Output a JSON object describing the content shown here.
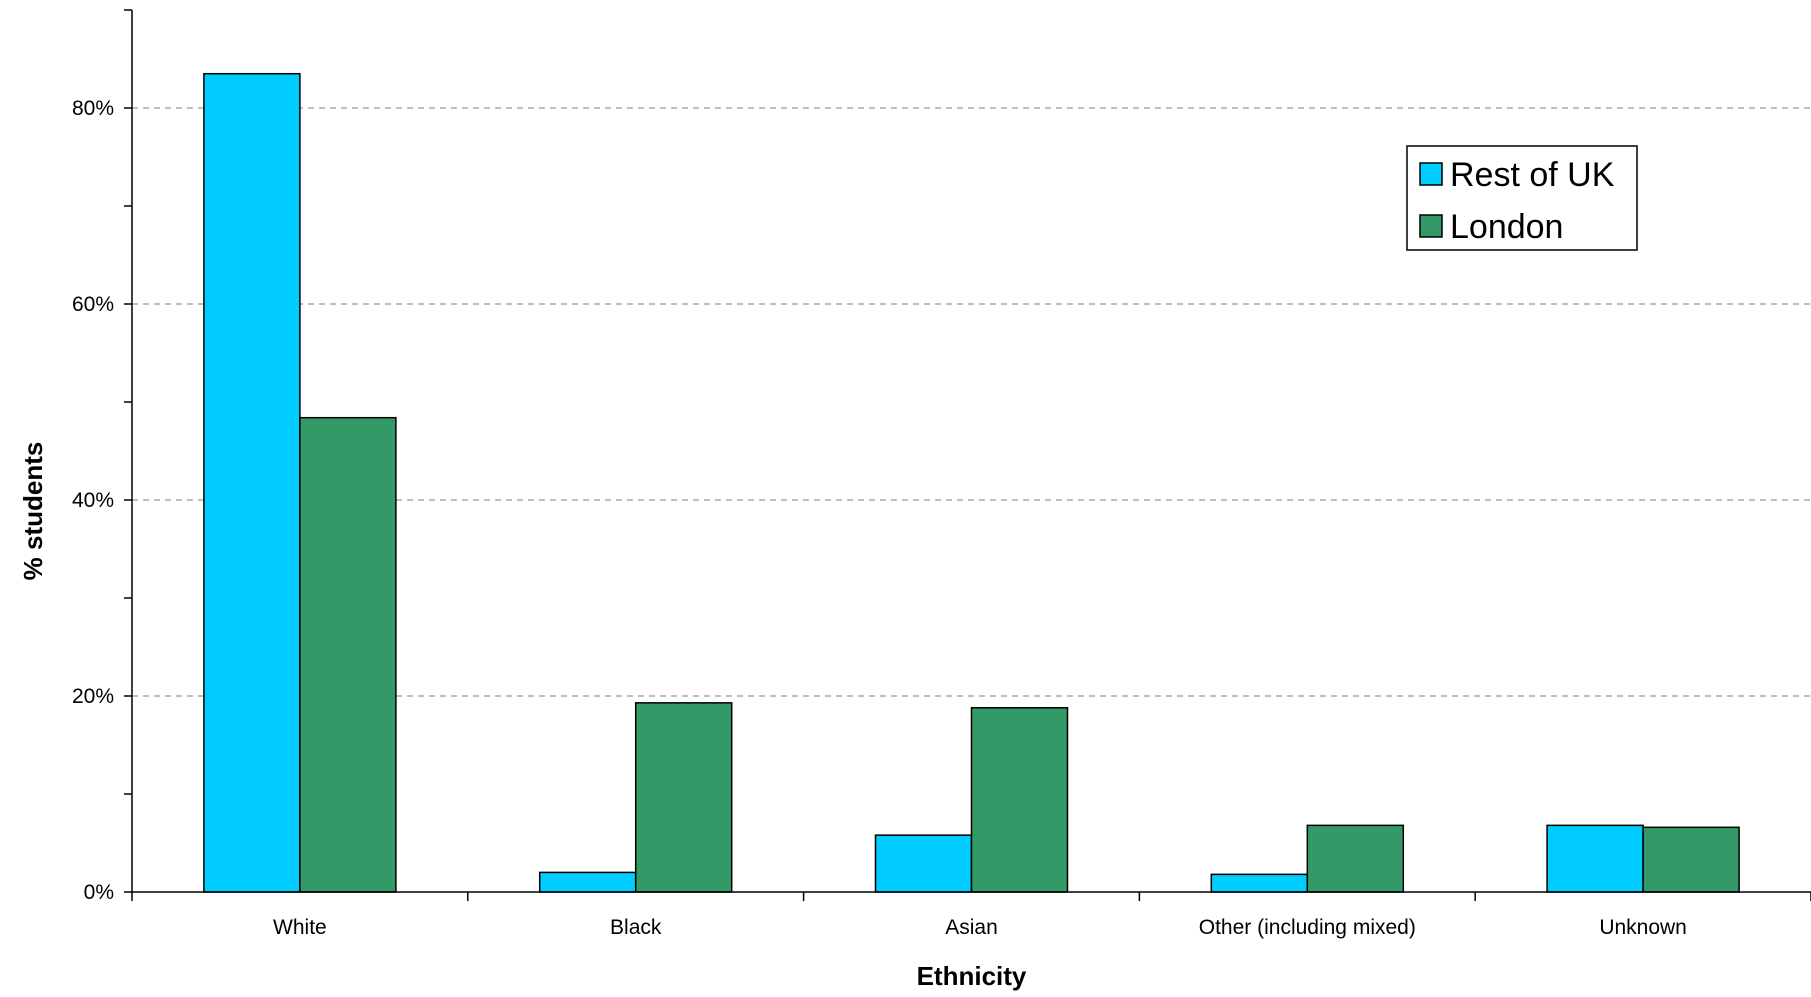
{
  "chart_data": {
    "type": "bar",
    "title": "",
    "xlabel": "Ethnicity",
    "ylabel": "% students",
    "categories": [
      "White",
      "Black",
      "Asian",
      "Other (including mixed)",
      "Unknown"
    ],
    "series": [
      {
        "name": "Rest of UK",
        "color": "#00CCFF",
        "values": [
          83.5,
          2.0,
          5.8,
          1.8,
          6.8
        ]
      },
      {
        "name": "London",
        "color": "#339966",
        "values": [
          48.4,
          19.3,
          18.8,
          6.8,
          6.6
        ]
      }
    ],
    "ylim": [
      0,
      90
    ],
    "yticks": [
      0,
      20,
      40,
      60,
      80
    ],
    "ytick_labels": [
      "0%",
      "20%",
      "40%",
      "60%",
      "80%"
    ],
    "grid": true,
    "legend_position": "top-right"
  }
}
